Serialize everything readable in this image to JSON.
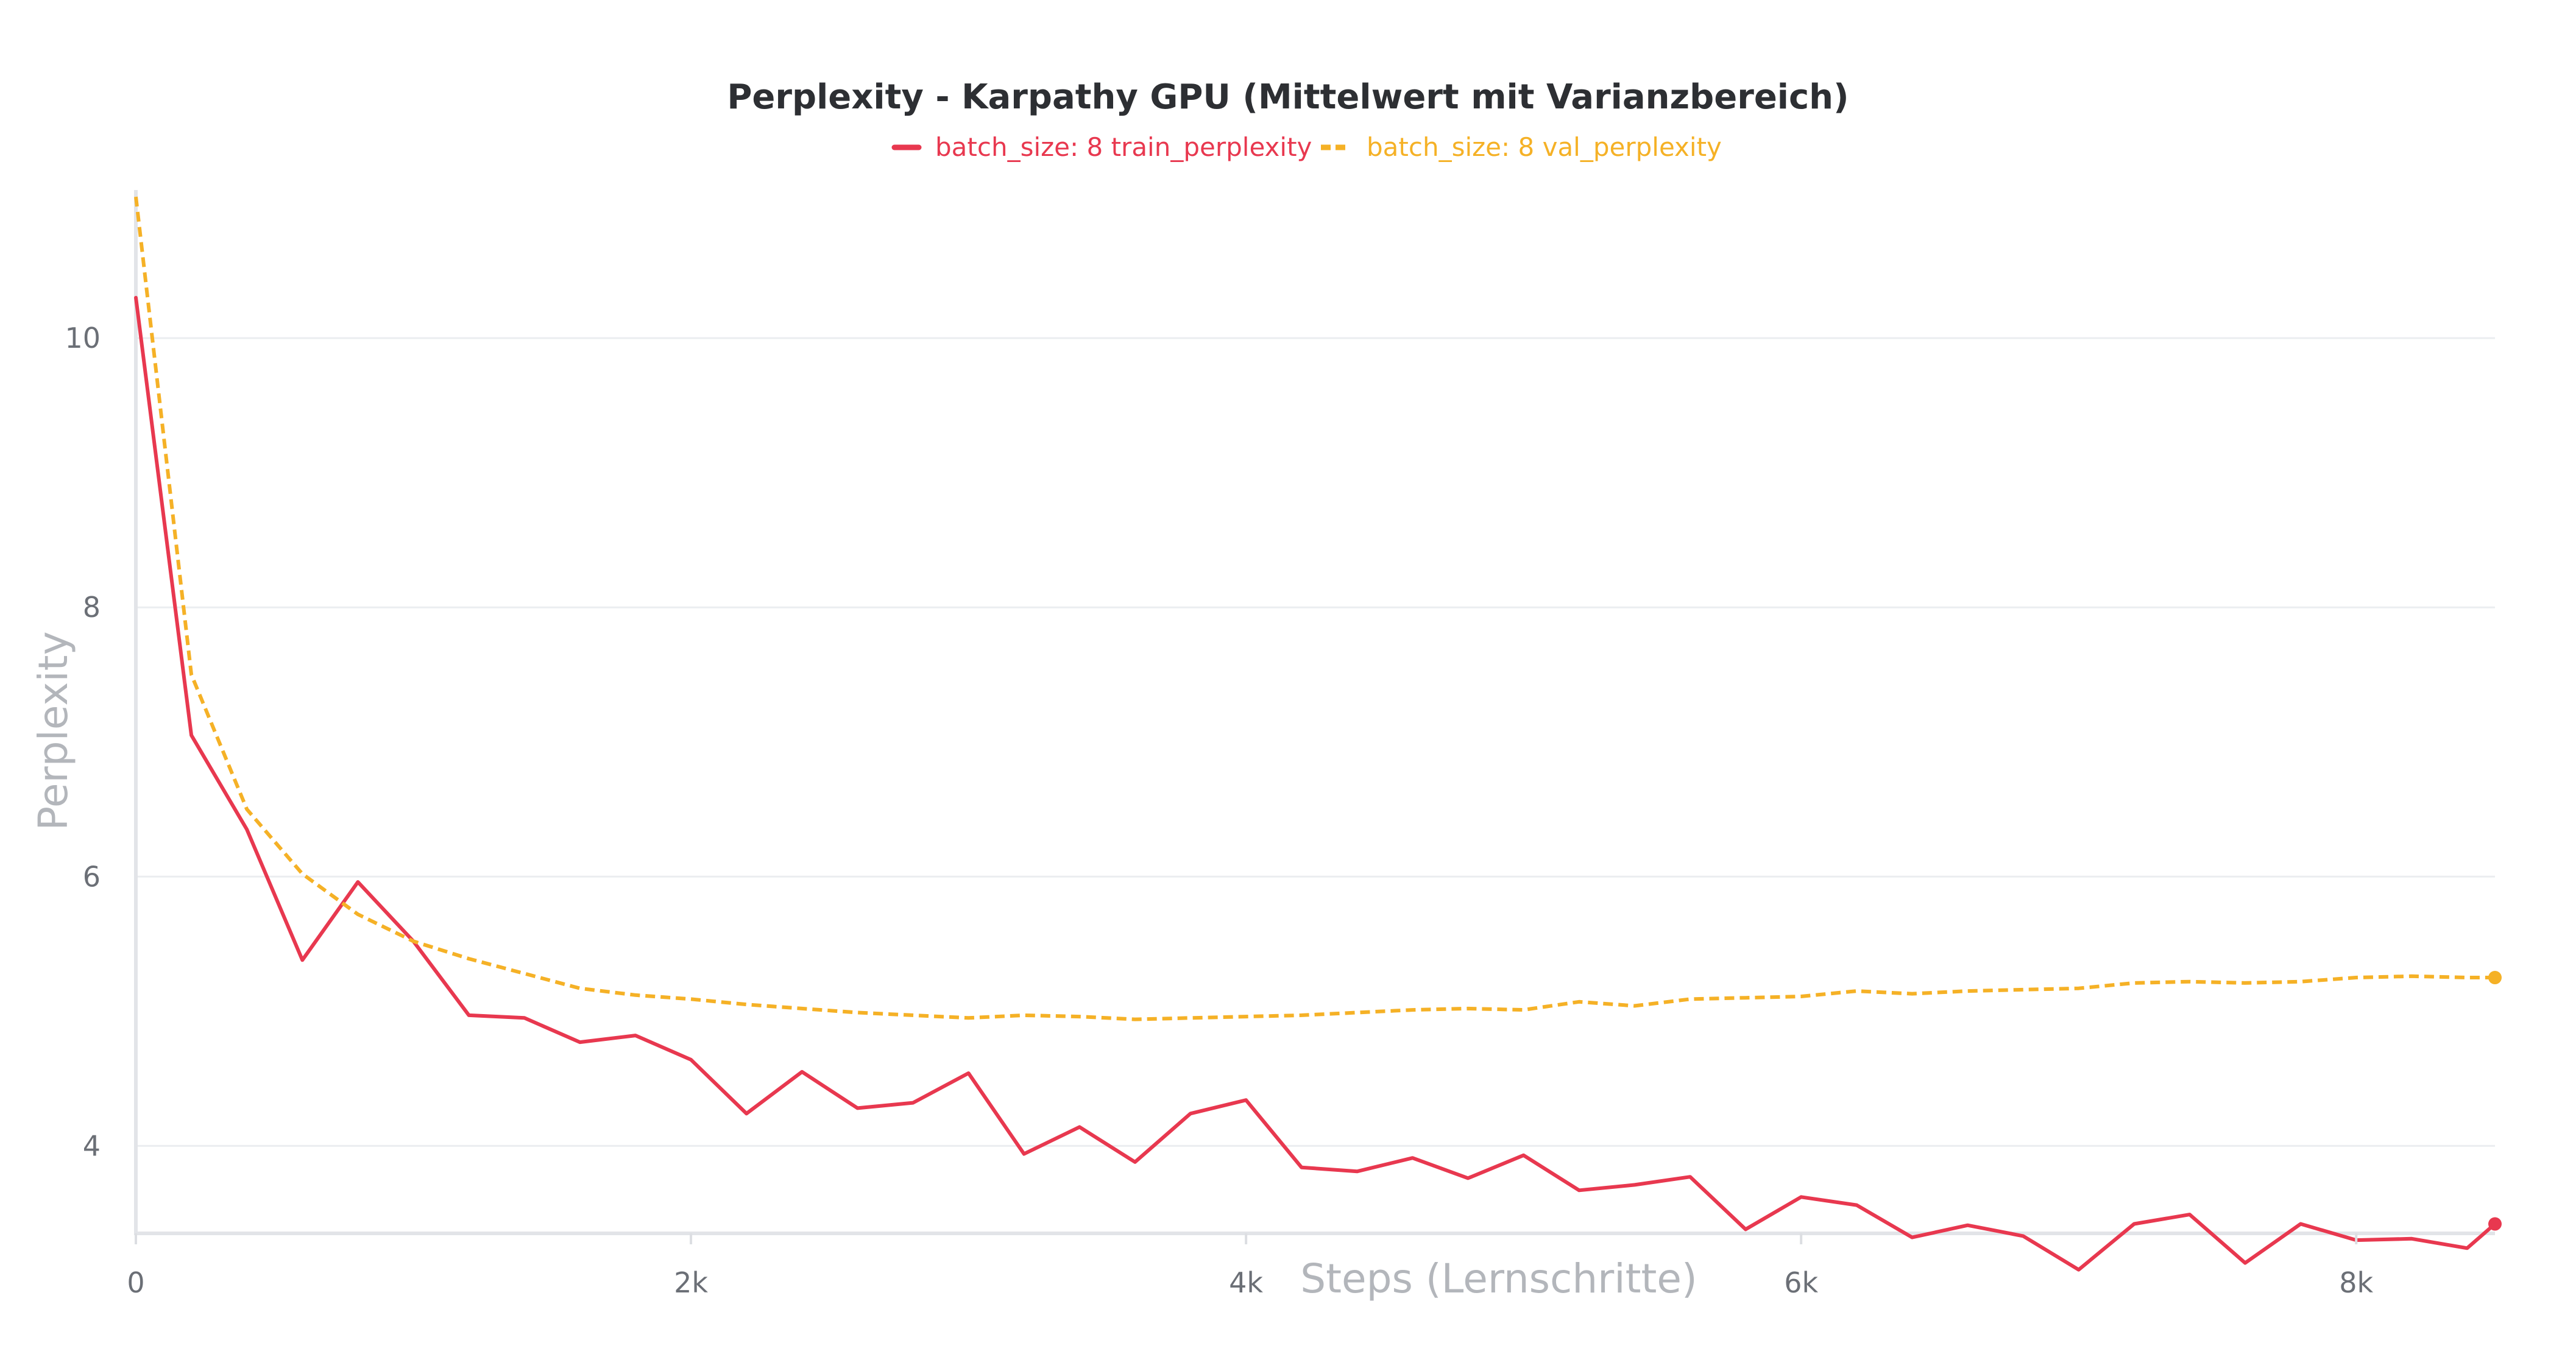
{
  "chart_data": {
    "type": "line",
    "title": "Perplexity - Karpathy GPU (Mittelwert mit Varianzbereich)",
    "xlabel": "Steps (Lernschritte)",
    "ylabel": "Perplexity",
    "xlim": [
      0,
      8500
    ],
    "ylim": [
      3.35,
      11.1
    ],
    "x_ticks": [
      0,
      2000,
      4000,
      6000,
      8000
    ],
    "x_tick_labels": [
      "0",
      "2k",
      "4k",
      "6k",
      "8k"
    ],
    "y_ticks": [
      4,
      6,
      8,
      10
    ],
    "y_tick_labels": [
      "4",
      "6",
      "8",
      "10"
    ],
    "grid": true,
    "legend_position": "top-center",
    "colors": {
      "train": "#e8384f",
      "val": "#f5b126"
    },
    "series": [
      {
        "name": "batch_size: 8 train_perplexity",
        "style": "solid",
        "x": [
          0,
          200,
          400,
          600,
          800,
          1000,
          1200,
          1400,
          1600,
          1800,
          2000,
          2200,
          2400,
          2600,
          2800,
          3000,
          3200,
          3400,
          3600,
          3800,
          4000,
          4200,
          4400,
          4600,
          4800,
          5000,
          5200,
          5400,
          5600,
          5800,
          6000,
          6200,
          6400,
          6600,
          6800,
          7000,
          7200,
          7400,
          7600,
          7800,
          8000,
          8200,
          8400,
          8500
        ],
        "y": [
          10.3,
          7.05,
          6.35,
          5.38,
          5.96,
          5.52,
          4.97,
          4.95,
          4.77,
          4.82,
          4.64,
          4.24,
          4.55,
          4.28,
          4.32,
          4.54,
          3.94,
          4.14,
          3.88,
          4.24,
          4.34,
          3.84,
          3.81,
          3.91,
          3.76,
          3.93,
          3.67,
          3.71,
          3.77,
          3.38,
          3.62,
          3.56,
          3.32,
          3.41,
          3.33,
          3.08,
          3.42,
          3.49,
          3.13,
          3.42,
          3.3,
          3.31,
          3.24,
          3.42
        ]
      },
      {
        "name": "batch_size: 8 val_perplexity",
        "style": "dashed",
        "x": [
          0,
          200,
          400,
          600,
          800,
          1000,
          1200,
          1400,
          1600,
          1800,
          2000,
          2200,
          2400,
          2600,
          2800,
          3000,
          3200,
          3400,
          3600,
          3800,
          4000,
          4200,
          4400,
          4600,
          4800,
          5000,
          5200,
          5400,
          5600,
          5800,
          6000,
          6200,
          6400,
          6600,
          6800,
          7000,
          7200,
          7400,
          7600,
          7800,
          8000,
          8200,
          8400,
          8500
        ],
        "y": [
          11.05,
          7.5,
          6.5,
          6.02,
          5.72,
          5.52,
          5.39,
          5.28,
          5.17,
          5.12,
          5.09,
          5.05,
          5.02,
          4.99,
          4.97,
          4.95,
          4.97,
          4.96,
          4.94,
          4.95,
          4.96,
          4.97,
          4.99,
          5.01,
          5.02,
          5.01,
          5.07,
          5.04,
          5.09,
          5.1,
          5.11,
          5.15,
          5.13,
          5.15,
          5.16,
          5.17,
          5.21,
          5.22,
          5.21,
          5.22,
          5.25,
          5.26,
          5.25,
          5.25
        ]
      }
    ]
  }
}
